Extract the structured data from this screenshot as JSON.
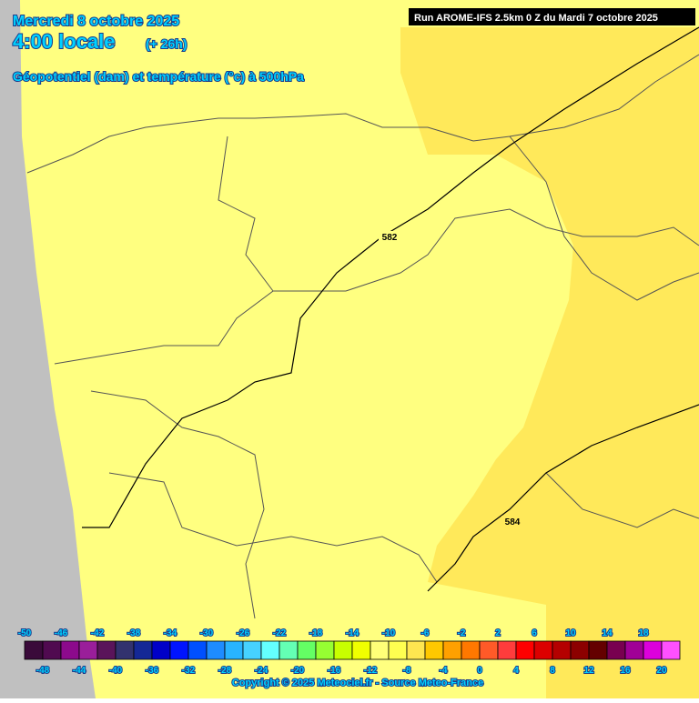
{
  "header": {
    "date": "Mercredi 8 octobre 2025",
    "time": "4:00 locale",
    "lead": "(+ 26h)",
    "parameter": "Géopotentiel (dam) et température (°c) à 500hPa"
  },
  "run_info": "Run AROME-IFS 2.5km 0 Z du Mardi 7 octobre 2025",
  "contour_labels": [
    582,
    584
  ],
  "colorbar": {
    "values": [
      -50,
      -48,
      -46,
      -44,
      -42,
      -40,
      -38,
      -36,
      -34,
      -32,
      -30,
      -28,
      -26,
      -24,
      -22,
      -20,
      -18,
      -16,
      -14,
      -12,
      -10,
      -8,
      -6,
      -4,
      -2,
      0,
      2,
      4,
      6,
      8,
      10,
      12,
      14,
      16,
      18,
      20
    ],
    "colors": [
      "#3a0a3a",
      "#500a50",
      "#8c0a8c",
      "#9a1e9a",
      "#5a145a",
      "#32326e",
      "#142896",
      "#0000c8",
      "#0014ff",
      "#0050ff",
      "#1e8cff",
      "#28b4ff",
      "#46d2ff",
      "#64ffff",
      "#64ffb4",
      "#64ff64",
      "#96ff32",
      "#c8ff00",
      "#f0ff00",
      "#ffff78",
      "#ffff50",
      "#ffe650",
      "#ffc800",
      "#ffa000",
      "#ff7800",
      "#ff5a28",
      "#ff3c3c",
      "#ff0000",
      "#dc0000",
      "#b40000",
      "#8c0000",
      "#640000",
      "#780050",
      "#a00096",
      "#dc00dc",
      "#ff50ff"
    ]
  },
  "copyright": "Copyright © 2025 Meteociel.fr - Source Meteo-France"
}
